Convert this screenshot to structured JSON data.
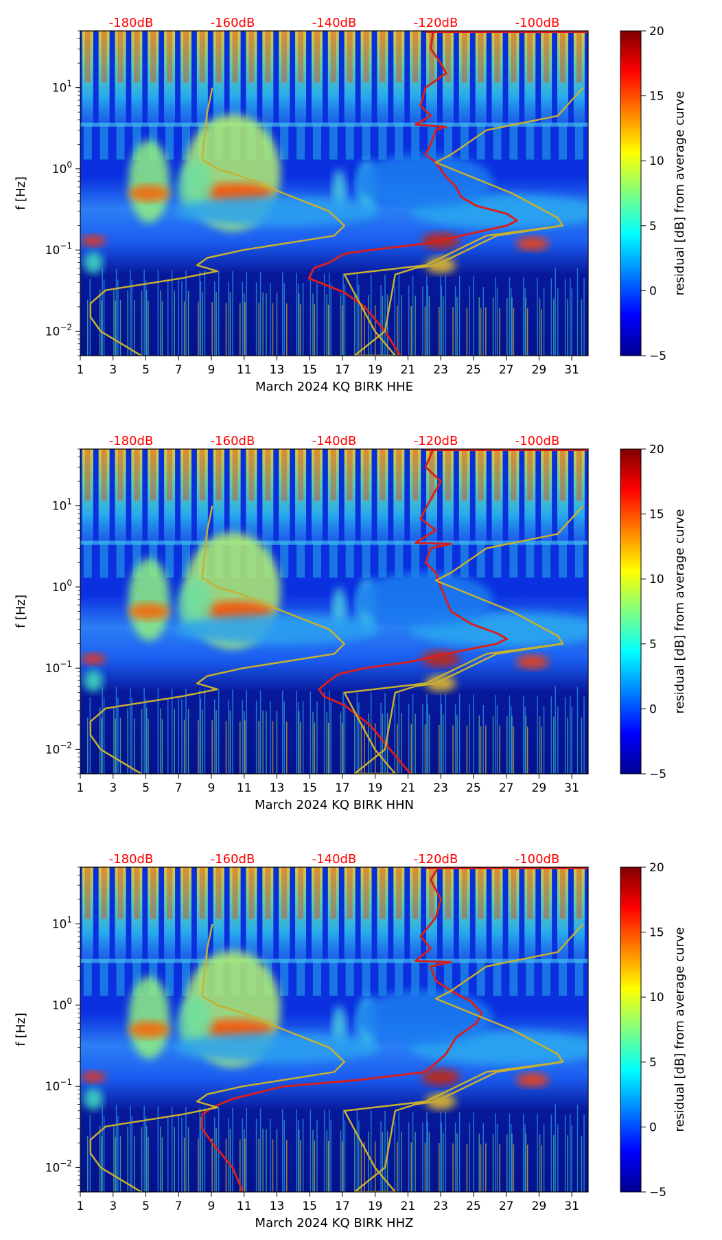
{
  "chart_data": [
    {
      "type": "heatmap",
      "xlabel": "March 2024 KQ BIRK  HHE",
      "ylabel": "f [Hz]",
      "x_ticks": [
        "1",
        "3",
        "5",
        "7",
        "9",
        "11",
        "13",
        "15",
        "17",
        "19",
        "21",
        "23",
        "25",
        "27",
        "29",
        "31"
      ],
      "xlim": [
        1,
        32
      ],
      "ylim": [
        0.005,
        50
      ],
      "y_scale": "log",
      "y_ticks": [
        {
          "value": 0.01,
          "base": "10",
          "exp": "−2"
        },
        {
          "value": 0.1,
          "base": "10",
          "exp": "−1"
        },
        {
          "value": 1,
          "base": "10",
          "exp": "0"
        },
        {
          "value": 10,
          "base": "10",
          "exp": "1"
        }
      ],
      "top_axis_labels": [
        "-180dB",
        "-160dB",
        "-140dB",
        "-120dB",
        "-100dB"
      ],
      "top_axis_values": [
        -180,
        -160,
        -140,
        -120,
        -100
      ],
      "top_axis_range": [
        -190,
        -90
      ],
      "colorbar": {
        "label": "residual [dB] from average curve",
        "ticks": [
          "−5",
          "0",
          "5",
          "10",
          "15",
          "20"
        ],
        "range": [
          -5,
          20
        ],
        "colormap": "jet"
      },
      "series": [
        {
          "color": "#d62020",
          "points": [
            [
              -120.5,
              50
            ],
            [
              -121,
              30
            ],
            [
              -119,
              20
            ],
            [
              -118,
              15
            ],
            [
              -122,
              10
            ],
            [
              -123,
              6
            ],
            [
              -121,
              4.5
            ],
            [
              -124,
              3.5
            ],
            [
              -118,
              3.3
            ],
            [
              -120,
              3
            ],
            [
              -121,
              2
            ],
            [
              -122,
              1.5
            ],
            [
              -120,
              1.2
            ],
            [
              -118,
              0.8
            ],
            [
              -116,
              0.6
            ],
            [
              -115,
              0.45
            ],
            [
              -112,
              0.35
            ],
            [
              -106,
              0.28
            ],
            [
              -104,
              0.23
            ],
            [
              -106,
              0.2
            ],
            [
              -115,
              0.15
            ],
            [
              -122,
              0.12
            ],
            [
              -133,
              0.1
            ],
            [
              -138,
              0.09
            ],
            [
              -141,
              0.07
            ],
            [
              -144,
              0.06
            ],
            [
              -145,
              0.045
            ],
            [
              -143,
              0.04
            ],
            [
              -138,
              0.03
            ],
            [
              -134,
              0.02
            ],
            [
              -130,
              0.01
            ],
            [
              -127,
              0.005
            ]
          ]
        },
        {
          "color": "#c8b030",
          "points": [
            [
              -91,
              10
            ],
            [
              -96,
              4.5
            ],
            [
              -110,
              3
            ],
            [
              -117,
              1.5
            ],
            [
              -120,
              1.2
            ],
            [
              -105,
              0.5
            ],
            [
              -96,
              0.25
            ],
            [
              -95,
              0.2
            ],
            [
              -110,
              0.15
            ],
            [
              -122,
              0.065
            ],
            [
              -138,
              0.05
            ],
            [
              -132,
              0.01
            ],
            [
              -128,
              0.005
            ],
            [
              -136,
              0.005
            ],
            [
              -130,
              0.01
            ],
            [
              -128,
              0.05
            ],
            [
              -124,
              0.06
            ],
            [
              -120,
              0.065
            ],
            [
              -108,
              0.15
            ],
            [
              -95,
              0.2
            ],
            [
              -96,
              0.2
            ]
          ]
        },
        {
          "color": "#c8b030",
          "points": [
            [
              -178,
              0.005
            ],
            [
              -186,
              0.01
            ],
            [
              -188,
              0.015
            ],
            [
              -188,
              0.022
            ],
            [
              -185,
              0.032
            ],
            [
              -170,
              0.045
            ],
            [
              -163,
              0.055
            ],
            [
              -167,
              0.065
            ],
            [
              -165,
              0.08
            ],
            [
              -158,
              0.1
            ],
            [
              -140,
              0.15
            ],
            [
              -138,
              0.2
            ],
            [
              -141,
              0.3
            ],
            [
              -150,
              0.5
            ],
            [
              -158,
              0.8
            ],
            [
              -163,
              1
            ],
            [
              -166,
              1.3
            ],
            [
              -165,
              5
            ],
            [
              -164,
              10
            ]
          ]
        }
      ]
    },
    {
      "type": "heatmap",
      "xlabel": "March 2024 KQ BIRK  HHN",
      "ylabel": "f [Hz]",
      "x_ticks": [
        "1",
        "3",
        "5",
        "7",
        "9",
        "11",
        "13",
        "15",
        "17",
        "19",
        "21",
        "23",
        "25",
        "27",
        "29",
        "31"
      ],
      "xlim": [
        1,
        32
      ],
      "ylim": [
        0.005,
        50
      ],
      "y_scale": "log",
      "y_ticks": [
        {
          "value": 0.01,
          "base": "10",
          "exp": "−2"
        },
        {
          "value": 0.1,
          "base": "10",
          "exp": "−1"
        },
        {
          "value": 1,
          "base": "10",
          "exp": "0"
        },
        {
          "value": 10,
          "base": "10",
          "exp": "1"
        }
      ],
      "top_axis_labels": [
        "-180dB",
        "-160dB",
        "-140dB",
        "-120dB",
        "-100dB"
      ],
      "top_axis_values": [
        -180,
        -160,
        -140,
        -120,
        -100
      ],
      "top_axis_range": [
        -190,
        -90
      ],
      "colorbar": {
        "label": "residual [dB] from average curve",
        "ticks": [
          "−5",
          "0",
          "5",
          "10",
          "15",
          "20"
        ],
        "range": [
          -5,
          20
        ],
        "colormap": "jet"
      },
      "series": [
        {
          "color": "#d62020",
          "points": [
            [
              -120.5,
              50
            ],
            [
              -122,
              30
            ],
            [
              -119,
              20
            ],
            [
              -121,
              12
            ],
            [
              -123,
              7
            ],
            [
              -120,
              5
            ],
            [
              -124,
              3.5
            ],
            [
              -117,
              3.4
            ],
            [
              -121,
              3
            ],
            [
              -122,
              2
            ],
            [
              -120,
              1.5
            ],
            [
              -119,
              1
            ],
            [
              -118,
              0.7
            ],
            [
              -117,
              0.5
            ],
            [
              -113,
              0.35
            ],
            [
              -108,
              0.27
            ],
            [
              -106,
              0.23
            ],
            [
              -108,
              0.2
            ],
            [
              -118,
              0.15
            ],
            [
              -125,
              0.12
            ],
            [
              -134,
              0.1
            ],
            [
              -139,
              0.085
            ],
            [
              -141,
              0.07
            ],
            [
              -143,
              0.055
            ],
            [
              -142,
              0.045
            ],
            [
              -138,
              0.035
            ],
            [
              -133,
              0.02
            ],
            [
              -129,
              0.01
            ],
            [
              -125,
              0.005
            ]
          ]
        },
        {
          "color": "#c8b030",
          "points": [
            [
              -91,
              10
            ],
            [
              -96,
              4.5
            ],
            [
              -110,
              3
            ],
            [
              -117,
              1.5
            ],
            [
              -120,
              1.2
            ],
            [
              -105,
              0.5
            ],
            [
              -96,
              0.25
            ],
            [
              -95,
              0.2
            ],
            [
              -110,
              0.15
            ],
            [
              -122,
              0.065
            ],
            [
              -138,
              0.05
            ],
            [
              -132,
              0.01
            ],
            [
              -128,
              0.005
            ],
            [
              -136,
              0.005
            ],
            [
              -130,
              0.01
            ],
            [
              -128,
              0.05
            ],
            [
              -124,
              0.06
            ],
            [
              -120,
              0.065
            ],
            [
              -108,
              0.15
            ],
            [
              -95,
              0.2
            ],
            [
              -96,
              0.2
            ]
          ]
        },
        {
          "color": "#c8b030",
          "points": [
            [
              -178,
              0.005
            ],
            [
              -186,
              0.01
            ],
            [
              -188,
              0.015
            ],
            [
              -188,
              0.022
            ],
            [
              -185,
              0.032
            ],
            [
              -170,
              0.045
            ],
            [
              -163,
              0.055
            ],
            [
              -167,
              0.065
            ],
            [
              -165,
              0.08
            ],
            [
              -158,
              0.1
            ],
            [
              -140,
              0.15
            ],
            [
              -138,
              0.2
            ],
            [
              -141,
              0.3
            ],
            [
              -150,
              0.5
            ],
            [
              -158,
              0.8
            ],
            [
              -163,
              1
            ],
            [
              -166,
              1.3
            ],
            [
              -165,
              5
            ],
            [
              -164,
              10
            ]
          ]
        }
      ]
    },
    {
      "type": "heatmap",
      "xlabel": "March 2024 KQ BIRK  HHZ",
      "ylabel": "f [Hz]",
      "x_ticks": [
        "1",
        "3",
        "5",
        "7",
        "9",
        "11",
        "13",
        "15",
        "17",
        "19",
        "21",
        "23",
        "25",
        "27",
        "29",
        "31"
      ],
      "xlim": [
        1,
        32
      ],
      "ylim": [
        0.005,
        50
      ],
      "y_scale": "log",
      "y_ticks": [
        {
          "value": 0.01,
          "base": "10",
          "exp": "−2"
        },
        {
          "value": 0.1,
          "base": "10",
          "exp": "−1"
        },
        {
          "value": 1,
          "base": "10",
          "exp": "0"
        },
        {
          "value": 10,
          "base": "10",
          "exp": "1"
        }
      ],
      "top_axis_labels": [
        "-180dB",
        "-160dB",
        "-140dB",
        "-120dB",
        "-100dB"
      ],
      "top_axis_values": [
        -180,
        -160,
        -140,
        -120,
        -100
      ],
      "top_axis_range": [
        -190,
        -90
      ],
      "colorbar": {
        "label": "residual [dB] from average curve",
        "ticks": [
          "−5",
          "0",
          "5",
          "10",
          "15",
          "20"
        ],
        "range": [
          -5,
          20
        ],
        "colormap": "jet"
      },
      "series": [
        {
          "color": "#d62020",
          "points": [
            [
              -119.5,
              50
            ],
            [
              -121,
              35
            ],
            [
              -119,
              20
            ],
            [
              -120,
              12
            ],
            [
              -123,
              7
            ],
            [
              -121,
              5
            ],
            [
              -124,
              3.5
            ],
            [
              -117,
              3.4
            ],
            [
              -121,
              3
            ],
            [
              -120,
              2
            ],
            [
              -117,
              1.5
            ],
            [
              -113,
              1.1
            ],
            [
              -111,
              0.8
            ],
            [
              -112,
              0.6
            ],
            [
              -116,
              0.4
            ],
            [
              -118,
              0.25
            ],
            [
              -122,
              0.15
            ],
            [
              -135,
              0.12
            ],
            [
              -150,
              0.1
            ],
            [
              -160,
              0.07
            ],
            [
              -164,
              0.055
            ],
            [
              -166,
              0.045
            ],
            [
              -166,
              0.03
            ],
            [
              -164,
              0.02
            ],
            [
              -160,
              0.01
            ],
            [
              -158,
              0.005
            ]
          ]
        },
        {
          "color": "#c8b030",
          "points": [
            [
              -91,
              10
            ],
            [
              -96,
              4.5
            ],
            [
              -110,
              3
            ],
            [
              -117,
              1.5
            ],
            [
              -120,
              1.2
            ],
            [
              -105,
              0.5
            ],
            [
              -96,
              0.25
            ],
            [
              -95,
              0.2
            ],
            [
              -110,
              0.15
            ],
            [
              -122,
              0.065
            ],
            [
              -138,
              0.05
            ],
            [
              -132,
              0.01
            ],
            [
              -128,
              0.005
            ],
            [
              -136,
              0.005
            ],
            [
              -130,
              0.01
            ],
            [
              -128,
              0.05
            ],
            [
              -124,
              0.06
            ],
            [
              -120,
              0.065
            ],
            [
              -108,
              0.15
            ],
            [
              -95,
              0.2
            ],
            [
              -96,
              0.2
            ]
          ]
        },
        {
          "color": "#c8b030",
          "points": [
            [
              -178,
              0.005
            ],
            [
              -186,
              0.01
            ],
            [
              -188,
              0.015
            ],
            [
              -188,
              0.022
            ],
            [
              -185,
              0.032
            ],
            [
              -170,
              0.045
            ],
            [
              -163,
              0.055
            ],
            [
              -167,
              0.065
            ],
            [
              -165,
              0.08
            ],
            [
              -158,
              0.1
            ],
            [
              -140,
              0.15
            ],
            [
              -138,
              0.2
            ],
            [
              -141,
              0.3
            ],
            [
              -150,
              0.5
            ],
            [
              -158,
              0.8
            ],
            [
              -163,
              1
            ],
            [
              -166,
              1.3
            ],
            [
              -165,
              5
            ],
            [
              -164,
              10
            ]
          ]
        }
      ]
    }
  ]
}
